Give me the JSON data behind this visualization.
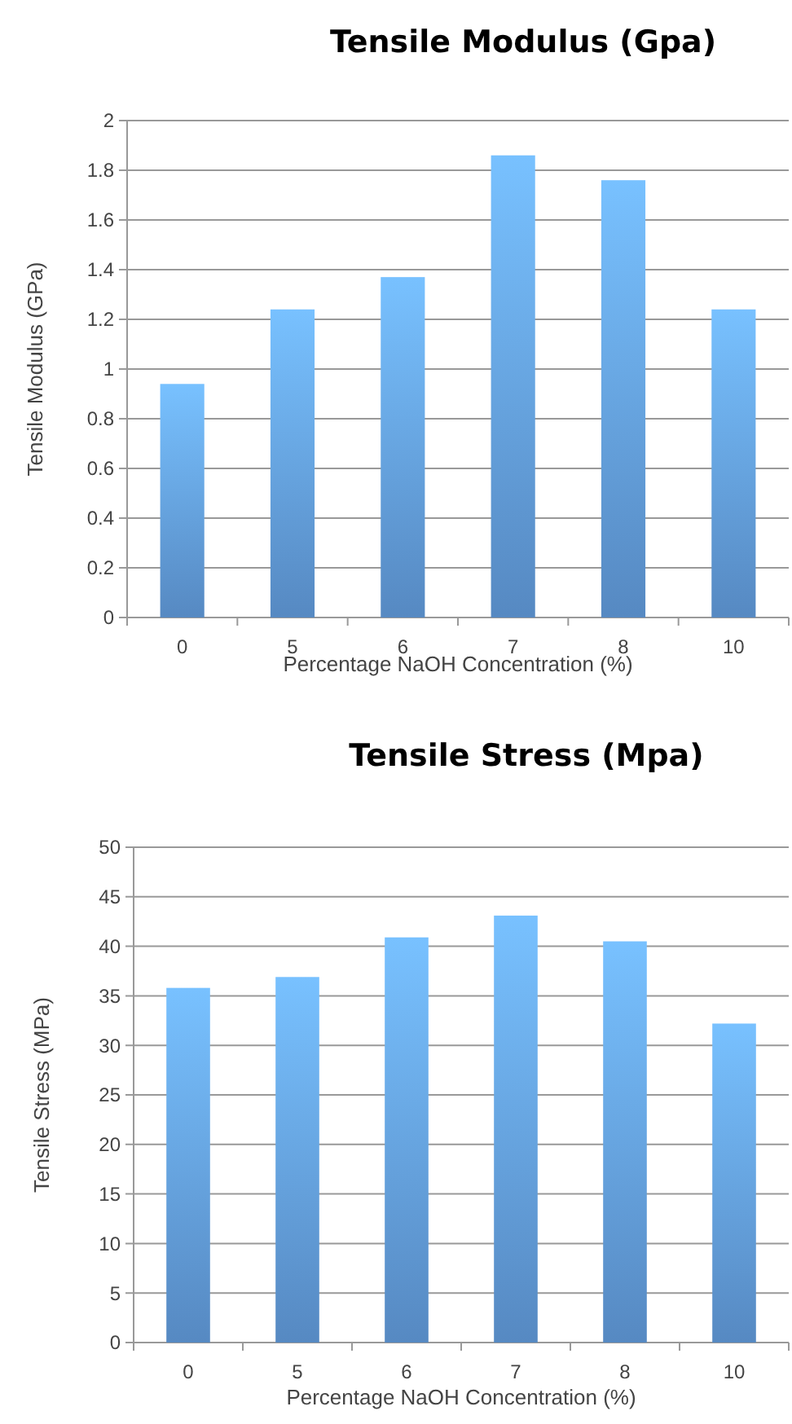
{
  "chart_data": [
    {
      "type": "bar",
      "title": "Tensile Modulus (Gpa)",
      "xlabel": "Percentage NaOH Concentration (%)",
      "ylabel": "Tensile Modulus (GPa)",
      "categories": [
        "0",
        "5",
        "6",
        "7",
        "8",
        "10"
      ],
      "values": [
        0.94,
        1.24,
        1.37,
        1.86,
        1.76,
        1.24
      ],
      "color": "#6aaaf0",
      "ylim": [
        0,
        2
      ],
      "yticks": [
        0,
        {
          "value": 0.2,
          "label": "0.2"
        },
        {
          "value": 0.4,
          "label": "0.4"
        },
        {
          "value": 0.6,
          "label": "0.6"
        },
        {
          "value": 0.8,
          "label": "0.8"
        },
        1,
        {
          "value": 1.2,
          "label": "1.2"
        },
        {
          "value": 1.4,
          "label": "1.4"
        },
        {
          "value": 1.6,
          "label": "1.6"
        },
        {
          "value": 1.8,
          "label": "1.8"
        },
        2
      ],
      "grid": "y"
    },
    {
      "type": "bar",
      "title": "Tensile Stress (Mpa)",
      "xlabel": "Percentage NaOH Concentration (%)",
      "ylabel": "Tensile Stress  (MPa)",
      "categories": [
        "0",
        "5",
        "6",
        "7",
        "8",
        "10"
      ],
      "values": [
        35.8,
        36.9,
        40.9,
        43.1,
        40.5,
        32.2
      ],
      "color": "#6aaaf0",
      "ylim": [
        0,
        50
      ],
      "yticks": [
        0,
        5,
        10,
        15,
        20,
        25,
        30,
        35,
        40,
        45,
        50
      ],
      "grid": "y"
    }
  ]
}
